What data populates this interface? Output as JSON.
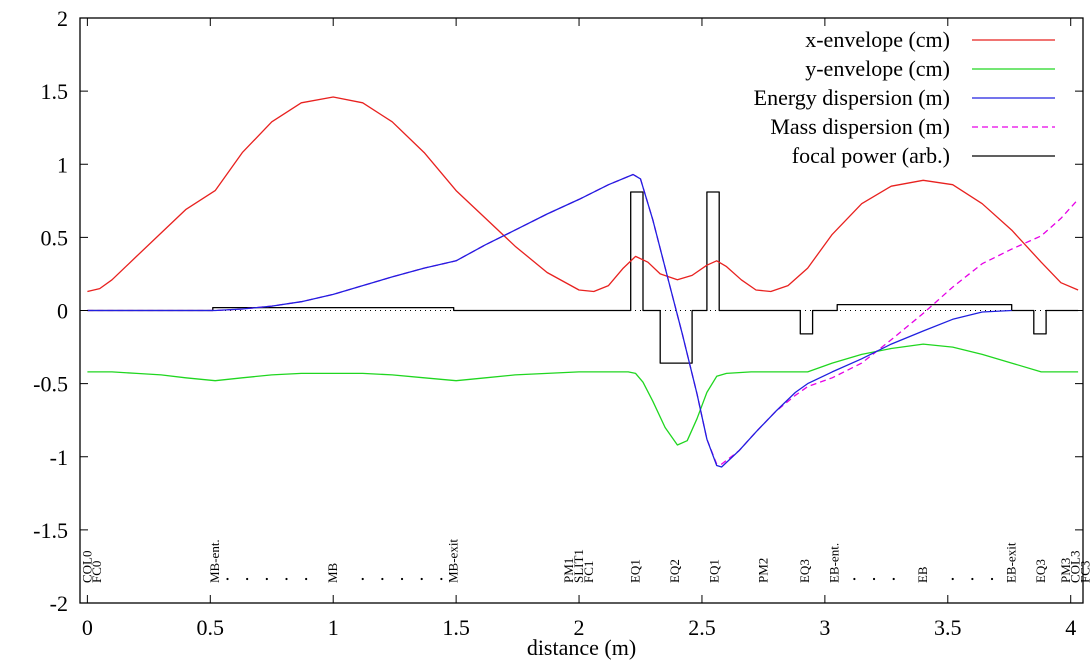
{
  "chart_data": {
    "type": "line",
    "xlabel": "distance (m)",
    "ylabel": "",
    "xlim": [
      -0.03,
      4.05
    ],
    "ylim": [
      -2,
      2
    ],
    "xticks": [
      0,
      0.5,
      1,
      1.5,
      2,
      2.5,
      3,
      3.5,
      4
    ],
    "xtick_labels": [
      "0",
      "0.5",
      "1",
      "1.5",
      "2",
      "2.5",
      "3",
      "3.5",
      "4"
    ],
    "yticks": [
      -2,
      -1.5,
      -1,
      -0.5,
      0,
      0.5,
      1,
      1.5,
      2
    ],
    "ytick_labels": [
      "-2",
      "-1.5",
      "-1",
      "-0.5",
      "0",
      "0.5",
      "1",
      "1.5",
      "2"
    ],
    "grid": false,
    "legend_position": "top-right",
    "zero_line": "dotted",
    "series": [
      {
        "name": "x-envelope (cm)",
        "color": "#e8211f",
        "dash": "solid",
        "x": [
          0,
          0.05,
          0.1,
          0.2,
          0.3,
          0.4,
          0.52,
          0.63,
          0.75,
          0.87,
          1.0,
          1.12,
          1.24,
          1.37,
          1.5,
          1.62,
          1.74,
          1.87,
          2.0,
          2.06,
          2.12,
          2.18,
          2.23,
          2.28,
          2.33,
          2.4,
          2.46,
          2.52,
          2.56,
          2.6,
          2.66,
          2.72,
          2.78,
          2.85,
          2.93,
          3.03,
          3.15,
          3.27,
          3.4,
          3.52,
          3.64,
          3.76,
          3.88,
          3.96,
          4.03
        ],
        "y": [
          0.13,
          0.15,
          0.21,
          0.37,
          0.53,
          0.69,
          0.82,
          1.08,
          1.29,
          1.42,
          1.46,
          1.42,
          1.29,
          1.08,
          0.82,
          0.63,
          0.44,
          0.26,
          0.14,
          0.13,
          0.17,
          0.29,
          0.37,
          0.33,
          0.25,
          0.21,
          0.24,
          0.31,
          0.34,
          0.3,
          0.21,
          0.14,
          0.13,
          0.17,
          0.29,
          0.52,
          0.73,
          0.85,
          0.89,
          0.86,
          0.73,
          0.55,
          0.33,
          0.19,
          0.14
        ]
      },
      {
        "name": "y-envelope (cm)",
        "color": "#20d620",
        "dash": "solid",
        "x": [
          0,
          0.1,
          0.2,
          0.3,
          0.4,
          0.52,
          0.63,
          0.75,
          0.87,
          1.0,
          1.12,
          1.24,
          1.37,
          1.5,
          1.62,
          1.74,
          1.87,
          2.0,
          2.1,
          2.2,
          2.23,
          2.26,
          2.3,
          2.35,
          2.4,
          2.44,
          2.48,
          2.52,
          2.56,
          2.6,
          2.7,
          2.8,
          2.93,
          3.03,
          3.15,
          3.27,
          3.4,
          3.52,
          3.64,
          3.76,
          3.88,
          3.96,
          4.03
        ],
        "y": [
          -0.42,
          -0.42,
          -0.43,
          -0.44,
          -0.46,
          -0.48,
          -0.46,
          -0.44,
          -0.43,
          -0.43,
          -0.43,
          -0.44,
          -0.46,
          -0.48,
          -0.46,
          -0.44,
          -0.43,
          -0.42,
          -0.42,
          -0.42,
          -0.43,
          -0.49,
          -0.62,
          -0.8,
          -0.92,
          -0.89,
          -0.74,
          -0.56,
          -0.45,
          -0.43,
          -0.42,
          -0.42,
          -0.42,
          -0.36,
          -0.3,
          -0.26,
          -0.23,
          -0.25,
          -0.3,
          -0.36,
          -0.42,
          -0.42,
          -0.42
        ]
      },
      {
        "name": "Energy dispersion (m)",
        "color": "#2020e0",
        "dash": "solid",
        "x": [
          0,
          0.52,
          0.63,
          0.75,
          0.87,
          1.0,
          1.12,
          1.24,
          1.37,
          1.5,
          1.62,
          1.74,
          1.87,
          2.0,
          2.12,
          2.22,
          2.25,
          2.3,
          2.36,
          2.42,
          2.48,
          2.52,
          2.56,
          2.58,
          2.65,
          2.72,
          2.8,
          2.88,
          2.93,
          3.03,
          3.15,
          3.27,
          3.4,
          3.52,
          3.64,
          3.76
        ],
        "y": [
          0,
          0,
          0.01,
          0.03,
          0.06,
          0.11,
          0.17,
          0.23,
          0.29,
          0.34,
          0.45,
          0.55,
          0.66,
          0.76,
          0.86,
          0.93,
          0.9,
          0.62,
          0.23,
          -0.16,
          -0.57,
          -0.88,
          -1.06,
          -1.07,
          -0.96,
          -0.83,
          -0.69,
          -0.56,
          -0.5,
          -0.42,
          -0.33,
          -0.23,
          -0.14,
          -0.06,
          -0.01,
          0.0
        ]
      },
      {
        "name": "Mass dispersion (m)",
        "color": "#e600e6",
        "dash": "dashed",
        "x": [
          0,
          0.52,
          0.63,
          0.75,
          0.87,
          1.0,
          1.12,
          1.24,
          1.37,
          1.5,
          1.62,
          1.74,
          1.87,
          2.0,
          2.12,
          2.22,
          2.25,
          2.3,
          2.36,
          2.42,
          2.48,
          2.52,
          2.56,
          2.58,
          2.65,
          2.72,
          2.8,
          2.88,
          2.93,
          3.03,
          3.15,
          3.27,
          3.4,
          3.52,
          3.64,
          3.76,
          3.88,
          3.96,
          4.03
        ],
        "y": [
          0,
          0,
          0.01,
          0.03,
          0.06,
          0.11,
          0.17,
          0.23,
          0.29,
          0.34,
          0.45,
          0.55,
          0.66,
          0.76,
          0.86,
          0.93,
          0.9,
          0.62,
          0.23,
          -0.16,
          -0.57,
          -0.88,
          -1.05,
          -1.05,
          -0.96,
          -0.83,
          -0.69,
          -0.58,
          -0.52,
          -0.46,
          -0.36,
          -0.2,
          -0.02,
          0.16,
          0.32,
          0.42,
          0.51,
          0.63,
          0.76
        ]
      },
      {
        "name": "focal power (arb.)",
        "color": "#000000",
        "dash": "solid",
        "step": true,
        "x": [
          0,
          0.51,
          0.51,
          1.49,
          1.49,
          2.21,
          2.21,
          2.26,
          2.26,
          2.33,
          2.33,
          2.46,
          2.46,
          2.52,
          2.52,
          2.57,
          2.57,
          2.9,
          2.9,
          2.95,
          2.95,
          3.05,
          3.05,
          3.76,
          3.76,
          3.85,
          3.85,
          3.9,
          3.9,
          4.03
        ],
        "y": [
          0,
          0,
          0.02,
          0.02,
          0,
          0,
          0.81,
          0.81,
          0,
          0,
          -0.36,
          -0.36,
          0,
          0,
          0.81,
          0.81,
          0,
          0,
          -0.16,
          -0.16,
          0,
          0,
          0.04,
          0.04,
          0,
          0,
          -0.16,
          -0.16,
          0,
          0
        ]
      }
    ],
    "element_labels": [
      {
        "x": 0.0,
        "text": "COL0"
      },
      {
        "x": 0.04,
        "text": "FC0"
      },
      {
        "x": 0.52,
        "text": "MB-ent."
      },
      {
        "x": 1.0,
        "text": "MB"
      },
      {
        "x": 1.49,
        "text": "MB-exit"
      },
      {
        "x": 1.96,
        "text": "PM1"
      },
      {
        "x": 2.0,
        "text": "SLIT1"
      },
      {
        "x": 2.04,
        "text": "FC1"
      },
      {
        "x": 2.23,
        "text": "EQ1"
      },
      {
        "x": 2.39,
        "text": "EQ2"
      },
      {
        "x": 2.55,
        "text": "EQ1"
      },
      {
        "x": 2.75,
        "text": "PM2"
      },
      {
        "x": 2.92,
        "text": "EQ3"
      },
      {
        "x": 3.04,
        "text": "EB-ent."
      },
      {
        "x": 3.4,
        "text": "EB"
      },
      {
        "x": 3.76,
        "text": "EB-exit"
      },
      {
        "x": 3.88,
        "text": "EQ3"
      },
      {
        "x": 3.98,
        "text": "PM3"
      },
      {
        "x": 4.02,
        "text": "COL3"
      },
      {
        "x": 4.06,
        "text": "FC3"
      }
    ],
    "dots_x": [
      0.57,
      0.65,
      0.73,
      0.81,
      0.89,
      1.12,
      1.2,
      1.28,
      1.36,
      1.44,
      3.12,
      3.2,
      3.28,
      3.52,
      3.6,
      3.68
    ]
  }
}
